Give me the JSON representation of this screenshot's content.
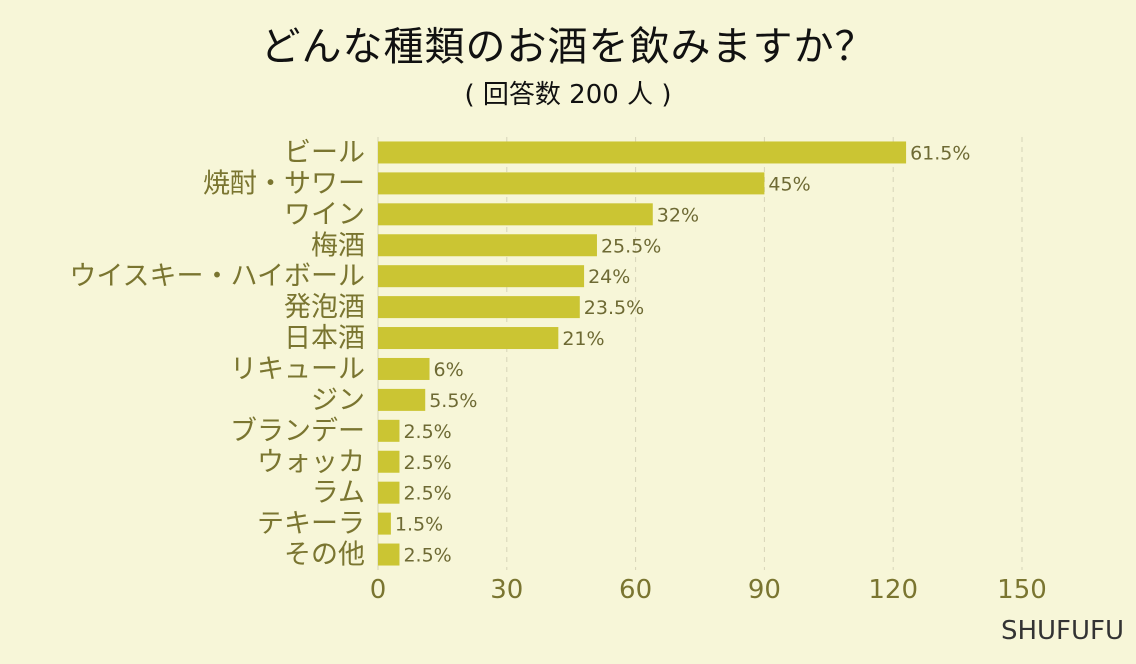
{
  "chart_data": {
    "type": "bar",
    "orientation": "horizontal",
    "title": "どんな種類のお酒を飲みますか？",
    "subtitle": "( 回答数 200 人 )",
    "categories": [
      "ビール",
      "焼酎・サワー",
      "ワイン",
      "梅酒",
      "ウイスキー・ハイボール",
      "発泡酒",
      "日本酒",
      "リキュール",
      "ジン",
      "ブランデー",
      "ウォッカ",
      "ラム",
      "テキーラ",
      "その他"
    ],
    "values": [
      123,
      90,
      64,
      51,
      48,
      47,
      42,
      12,
      11,
      5,
      5,
      5,
      3,
      5
    ],
    "data_labels": [
      "61.5%",
      "45%",
      "32%",
      "25.5%",
      "24%",
      "23.5%",
      "21%",
      "6%",
      "5.5%",
      "2.5%",
      "2.5%",
      "2.5%",
      "1.5%",
      "2.5%"
    ],
    "x_ticks": [
      "0",
      "30",
      "60",
      "90",
      "120",
      "150"
    ],
    "xlim": [
      0,
      150
    ],
    "grid": "vertical dashed",
    "colors": {
      "bar": "#cbc533",
      "background": "#f7f6d8",
      "category_text": "#7a7530",
      "tick_text": "#7a7530",
      "label_text": "#6e6a34"
    }
  },
  "source": "SHUFUFU"
}
